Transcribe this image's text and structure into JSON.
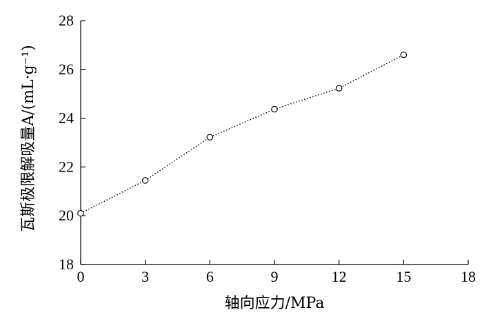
{
  "chart_data": {
    "type": "line",
    "title": "",
    "xlabel": "轴向应力/MPa",
    "ylabel": "瓦斯极限解吸量A/(mL·g⁻¹)",
    "xlim": [
      0,
      18
    ],
    "ylim": [
      18,
      28
    ],
    "xticks": [
      0,
      3,
      6,
      9,
      12,
      15,
      18
    ],
    "yticks": [
      18,
      20,
      22,
      24,
      26,
      28
    ],
    "grid": false,
    "legend": "none",
    "series": [
      {
        "marker": "open-circle",
        "line_style": "dotted",
        "x": [
          0,
          3,
          6,
          9,
          12,
          15
        ],
        "y": [
          20.1,
          21.45,
          23.22,
          24.37,
          25.23,
          26.6
        ]
      }
    ]
  }
}
